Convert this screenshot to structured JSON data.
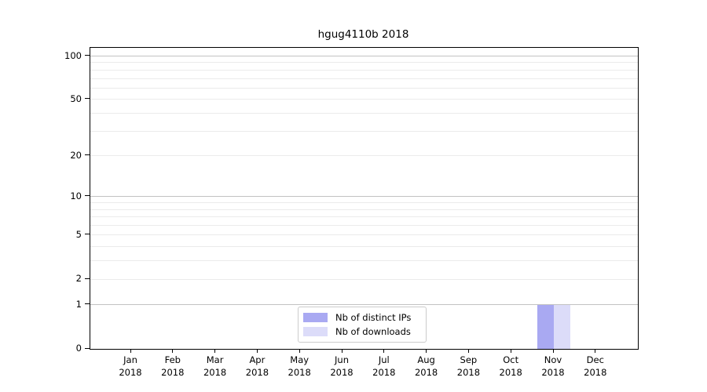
{
  "chart_data": {
    "type": "bar",
    "title": "hgug4110b 2018",
    "categories": [
      "Jan",
      "Feb",
      "Mar",
      "Apr",
      "May",
      "Jun",
      "Jul",
      "Aug",
      "Sep",
      "Oct",
      "Nov",
      "Dec"
    ],
    "category_year": "2018",
    "series": [
      {
        "name": "Nb of distinct IPs",
        "color": "#a9a9f2",
        "values": [
          0,
          0,
          0,
          0,
          0,
          0,
          0,
          0,
          0,
          0,
          1,
          0
        ]
      },
      {
        "name": "Nb of downloads",
        "color": "#dcdcf9",
        "values": [
          0,
          0,
          0,
          0,
          0,
          0,
          0,
          0,
          0,
          0,
          1,
          0
        ]
      }
    ],
    "y_axis": {
      "scale": "log1p",
      "ylim": [
        0,
        100
      ],
      "tick_values": [
        0,
        1,
        2,
        5,
        10,
        20,
        50,
        100
      ],
      "major_gridlines": [
        1,
        10,
        100
      ],
      "light_gridlines": [
        2,
        3,
        4,
        5,
        6,
        7,
        8,
        9,
        20,
        30,
        40,
        50,
        60,
        70,
        80,
        90
      ]
    },
    "xlabel": "",
    "ylabel": "",
    "grid": true,
    "legend": {
      "position": "bottom-center",
      "entries": [
        "Nb of distinct IPs",
        "Nb of downloads"
      ]
    },
    "colors": {
      "grid_major": "#c2c2c2",
      "grid_light": "#ebebeb",
      "axis": "#000000",
      "text": "#000000",
      "background": "#ffffff"
    }
  }
}
